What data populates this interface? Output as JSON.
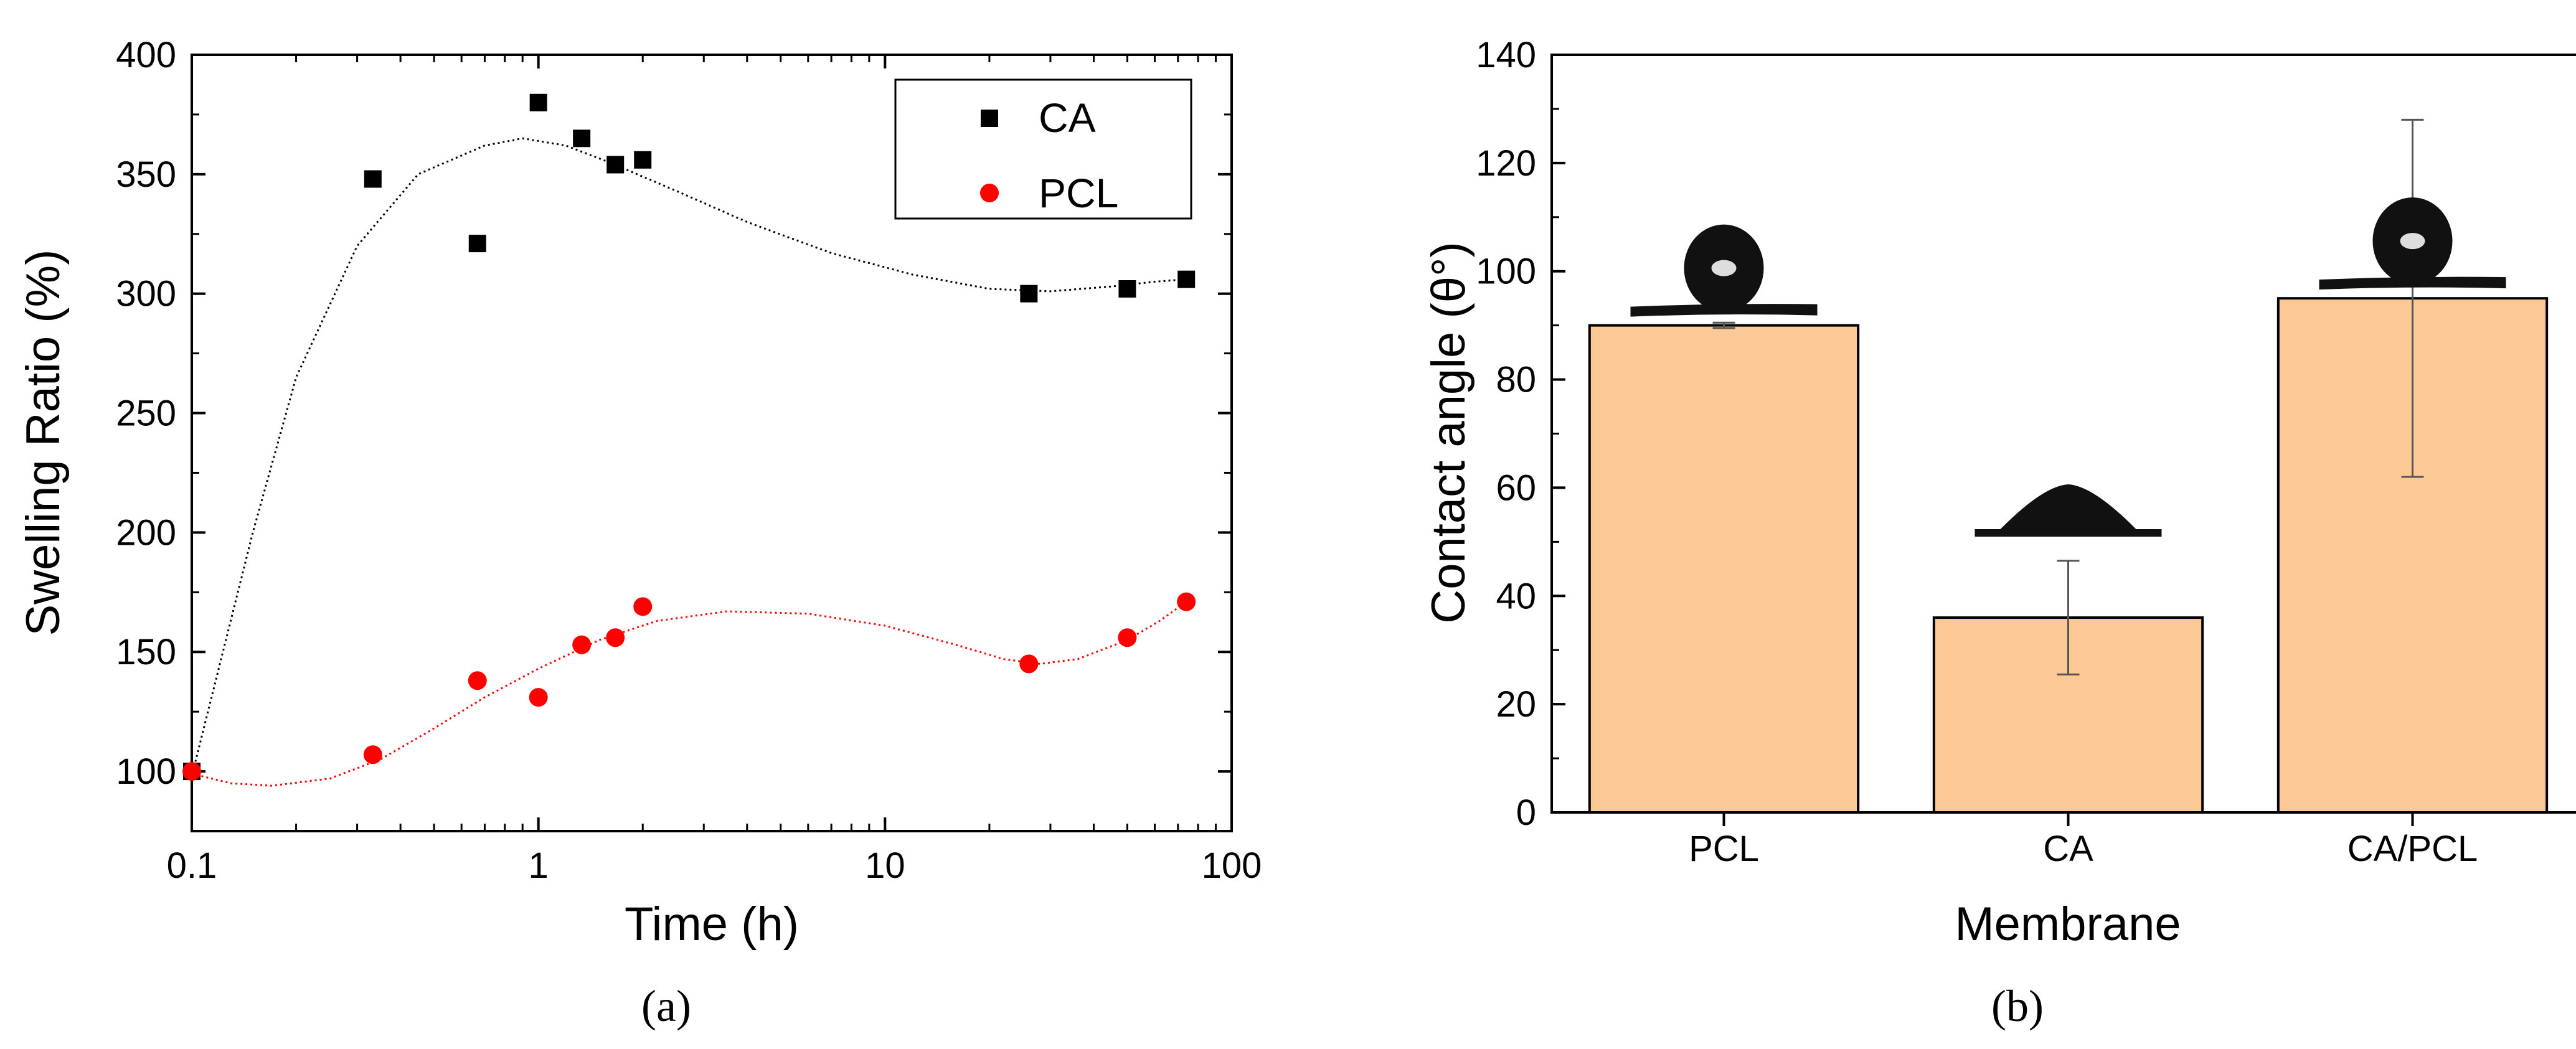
{
  "chart_data": [
    {
      "type": "scatter",
      "panel_label": "(a)",
      "xlabel": "Time (h)",
      "ylabel": "Swelling Ratio (%)",
      "xscale": "log",
      "xlim": [
        0.1,
        100
      ],
      "ylim": [
        75,
        400
      ],
      "xticks": [
        0.1,
        1,
        10,
        100
      ],
      "xtick_labels": [
        "0.1",
        "1",
        "10",
        "100"
      ],
      "yticks": [
        100,
        150,
        200,
        250,
        300,
        350,
        400
      ],
      "ytick_labels": [
        "100",
        "150",
        "200",
        "250",
        "300",
        "350",
        "400"
      ],
      "legend_position": "top-right",
      "grid": false,
      "series": [
        {
          "name": "CA",
          "marker": "square",
          "color": "#000000",
          "fit_line": "dotted",
          "x": [
            0.1,
            0.333,
            0.667,
            1.0,
            1.333,
            1.667,
            2.0,
            26.0,
            50.0,
            74.0
          ],
          "y": [
            100,
            348,
            321,
            380,
            365,
            354,
            356,
            300,
            302,
            306
          ],
          "fit": [
            [
              0.1,
              98
            ],
            [
              0.15,
              200
            ],
            [
              0.2,
              265
            ],
            [
              0.3,
              320
            ],
            [
              0.45,
              350
            ],
            [
              0.7,
              362
            ],
            [
              0.9,
              365
            ],
            [
              1.2,
              362
            ],
            [
              1.6,
              355
            ],
            [
              2.5,
              343
            ],
            [
              4,
              330
            ],
            [
              7,
              317
            ],
            [
              12,
              308
            ],
            [
              20,
              302
            ],
            [
              30,
              301
            ],
            [
              45,
              303
            ],
            [
              60,
              305
            ],
            [
              74,
              306
            ]
          ]
        },
        {
          "name": "PCL",
          "marker": "circle",
          "color": "#ff0000",
          "fit_line": "dotted",
          "x": [
            0.1,
            0.333,
            0.667,
            1.0,
            1.333,
            1.667,
            2.0,
            26.0,
            50.0,
            74.0
          ],
          "y": [
            100,
            107,
            138,
            131,
            153,
            156,
            169,
            145,
            156,
            171
          ],
          "fit": [
            [
              0.1,
              99
            ],
            [
              0.13,
              95
            ],
            [
              0.17,
              94
            ],
            [
              0.25,
              97
            ],
            [
              0.35,
              105
            ],
            [
              0.5,
              118
            ],
            [
              0.7,
              131
            ],
            [
              1,
              143
            ],
            [
              1.5,
              155
            ],
            [
              2.2,
              163
            ],
            [
              3.5,
              167
            ],
            [
              6,
              166
            ],
            [
              10,
              161
            ],
            [
              16,
              153
            ],
            [
              22,
              147
            ],
            [
              28,
              145
            ],
            [
              36,
              147
            ],
            [
              50,
              155
            ],
            [
              62,
              163
            ],
            [
              74,
              171
            ]
          ]
        }
      ]
    },
    {
      "type": "bar",
      "panel_label": "(b)",
      "xlabel": "Membrane",
      "ylabel": "Contact angle (θ°)",
      "categories": [
        "PCL",
        "CA",
        "CA/PCL"
      ],
      "values": [
        90,
        36,
        95
      ],
      "error_lower": [
        89.5,
        25.5,
        62
      ],
      "error_upper": [
        90.5,
        46.5,
        128
      ],
      "ylim": [
        0,
        140
      ],
      "yticks": [
        0,
        20,
        40,
        60,
        80,
        100,
        120,
        140
      ],
      "ytick_labels": [
        "0",
        "20",
        "40",
        "60",
        "80",
        "100",
        "120",
        "140"
      ],
      "bar_color": "#fcc896",
      "droplet_shapes": [
        "near-spherical",
        "flattened-cap",
        "near-spherical"
      ],
      "grid": false
    }
  ]
}
